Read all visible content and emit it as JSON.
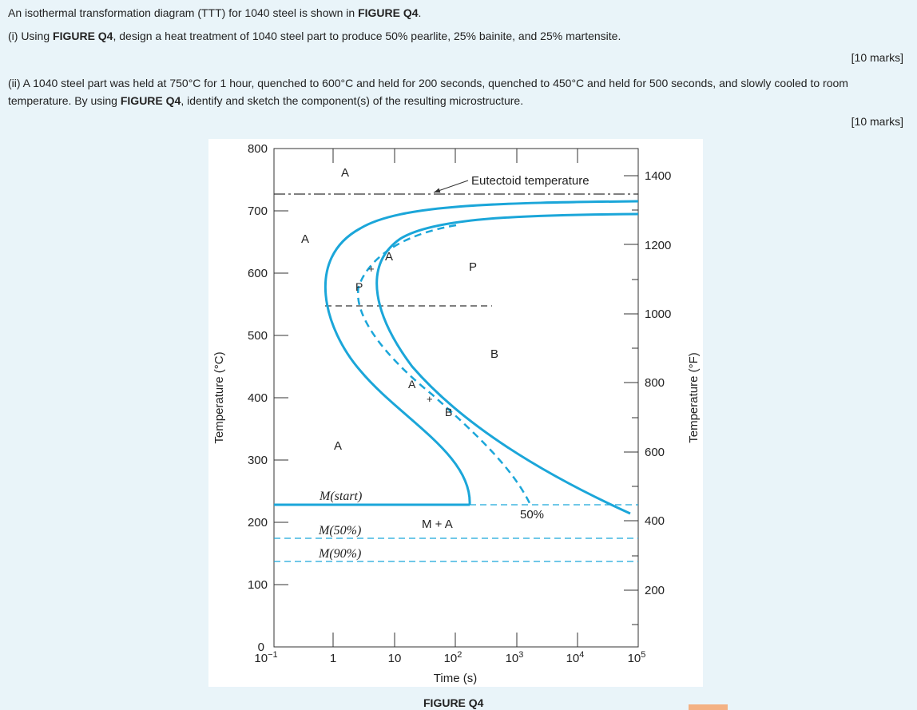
{
  "question": {
    "intro_text": "An isothermal transformation diagram (TTT) for 1040 steel is shown in ",
    "intro_bold": "FIGURE Q4",
    "intro_end": ".",
    "part1_a": "(i) Using ",
    "part1_bold": "FIGURE Q4",
    "part1_b": ", design a heat treatment of 1040 steel part to produce 50% pearlite, 25% bainite, and 25% martensite.",
    "marks1": "[10 marks]",
    "part2_a": "(ii) A 1040 steel part was held at 750°C for 1 hour, quenched to 600°C and held for 200 seconds, quenched to 450°C and held for 500 seconds, and slowly cooled to room temperature. By using ",
    "part2_bold": "FIGURE Q4",
    "part2_b": ", identify and sketch the component(s) of the resulting microstructure.",
    "marks2": "[10 marks]"
  },
  "figure": {
    "caption": "FIGURE Q4",
    "left_axis_label": "Temperature (°C)",
    "right_axis_label": "Temperature (°F)",
    "x_axis_label": "Time (s)",
    "left_ticks": [
      "800",
      "700",
      "600",
      "500",
      "400",
      "300",
      "200",
      "100",
      "0"
    ],
    "right_ticks": [
      "1400",
      "1200",
      "1000",
      "800",
      "600",
      "400",
      "200"
    ],
    "x_ticks": [
      {
        "base": "10",
        "exp": "−1"
      },
      {
        "base": "1",
        "exp": ""
      },
      {
        "base": "10",
        "exp": ""
      },
      {
        "base": "10",
        "exp": "2"
      },
      {
        "base": "10",
        "exp": "3"
      },
      {
        "base": "10",
        "exp": "4"
      },
      {
        "base": "10",
        "exp": "5"
      }
    ],
    "labels": {
      "eutectoid": "Eutectoid temperature",
      "a_top": "A",
      "a_left": "A",
      "a_curve_upper": "A",
      "p_dash": "P",
      "p_right": "P",
      "b_right": "B",
      "a_curve_lower": "A",
      "b_dash": "B",
      "a_low": "A",
      "plus_upper": "+",
      "plus_lower": "+",
      "m_start": "M(start)",
      "m_50": "M(50%)",
      "m_90": "M(90%)",
      "m_plus_a": "M + A",
      "fifty_percent": "50%"
    }
  },
  "colors": {
    "background": "#e9f4f9",
    "curve": "#1ba6d9",
    "figure_bg": "#ffffff",
    "caption_tab": "#f4b183"
  }
}
